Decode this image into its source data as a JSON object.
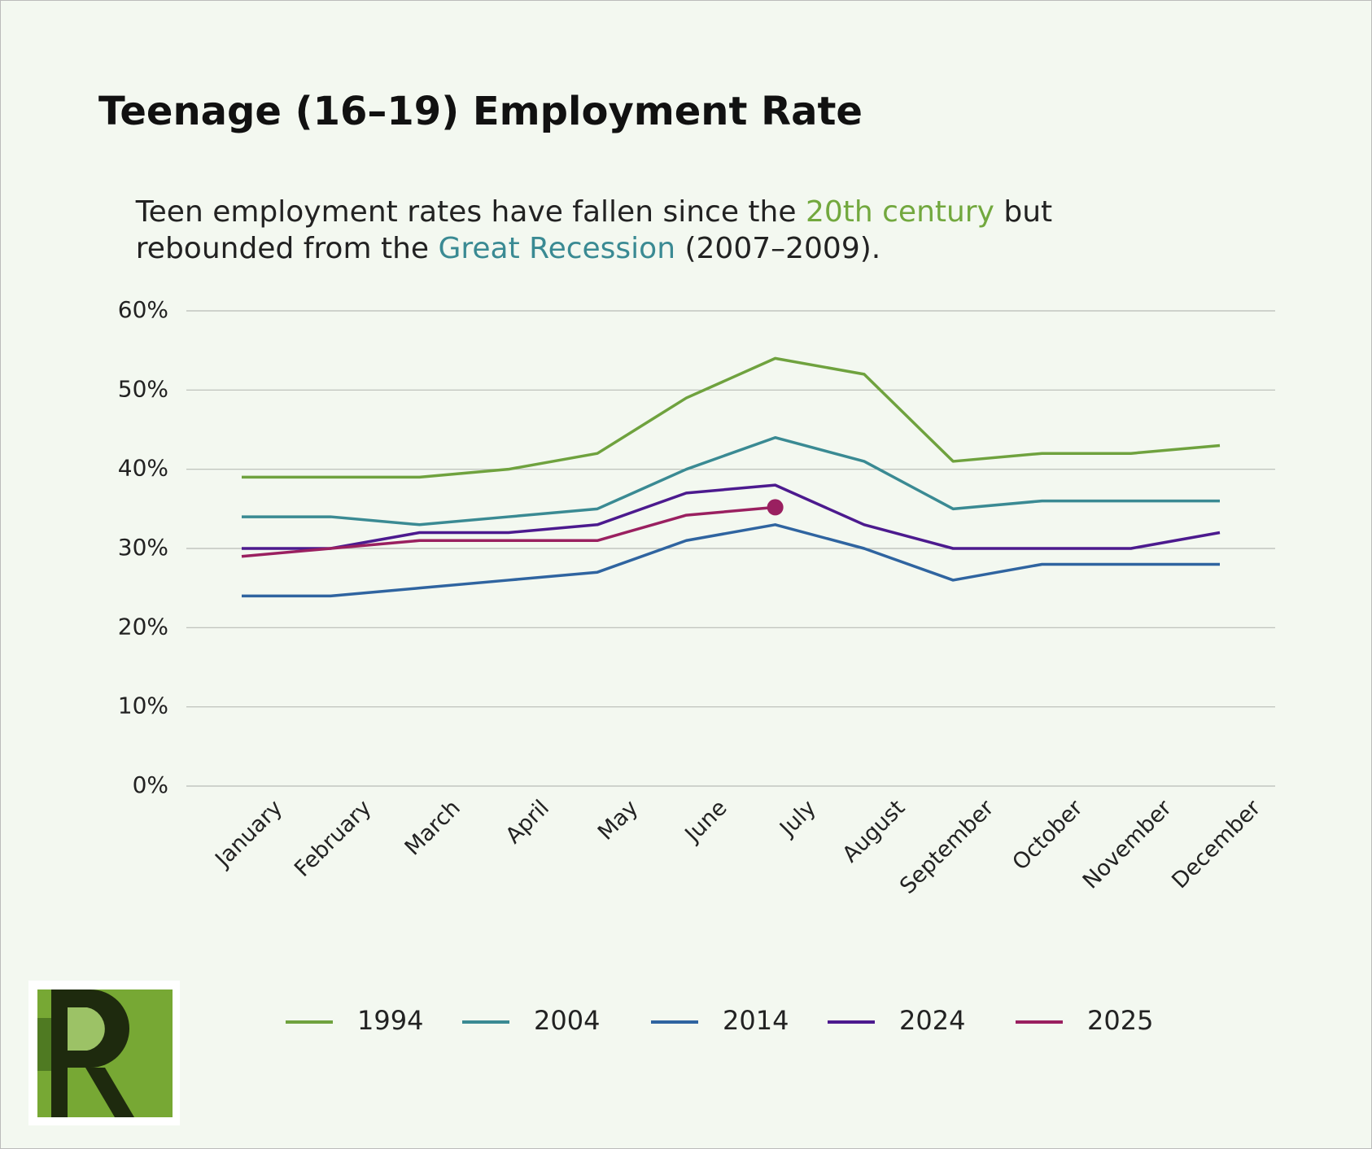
{
  "chart_data": {
    "type": "line",
    "title": "Teenage (16–19) Employment Rate",
    "subtitle": [
      [
        {
          "text": "Teen employment rates have fallen since the "
        },
        {
          "text": "20th century",
          "color": "#72a83e"
        },
        {
          "text": " but"
        }
      ],
      [
        {
          "text": "rebounded from the "
        },
        {
          "text": "Great Recession",
          "color": "#3a8a93"
        },
        {
          "text": " (2007–2009)."
        }
      ]
    ],
    "categories": [
      "January",
      "February",
      "March",
      "April",
      "May",
      "June",
      "July",
      "August",
      "September",
      "October",
      "November",
      "December"
    ],
    "series": [
      {
        "name": "1994",
        "color": "#6fa23e",
        "values": [
          39,
          39,
          39,
          40,
          42,
          49,
          54,
          52,
          41,
          42,
          42,
          43
        ]
      },
      {
        "name": "2004",
        "color": "#3a8a93",
        "values": [
          34,
          34,
          33,
          34,
          35,
          40,
          44,
          41,
          35,
          36,
          36,
          36
        ]
      },
      {
        "name": "2014",
        "color": "#2f64a0",
        "values": [
          24,
          24,
          25,
          26,
          27,
          31,
          33,
          30,
          26,
          28,
          28,
          28
        ]
      },
      {
        "name": "2024",
        "color": "#4c1a8e",
        "values": [
          30,
          30,
          32,
          32,
          33,
          37,
          38,
          33,
          30,
          30,
          30,
          32
        ]
      },
      {
        "name": "2025",
        "color": "#9a2060",
        "values": [
          29,
          30,
          31,
          31,
          31,
          34.2,
          35.2,
          null,
          null,
          null,
          null,
          null
        ],
        "end_marker": true
      }
    ],
    "ylim": [
      0,
      60
    ],
    "yticks": [
      {
        "value": 0,
        "label": "0%"
      },
      {
        "value": 10,
        "label": "10%"
      },
      {
        "value": 20,
        "label": "20%"
      },
      {
        "value": 30,
        "label": "30%"
      },
      {
        "value": 40,
        "label": "40%"
      },
      {
        "value": 50,
        "label": "50%"
      },
      {
        "value": 60,
        "label": "60%"
      }
    ],
    "grid": true
  }
}
